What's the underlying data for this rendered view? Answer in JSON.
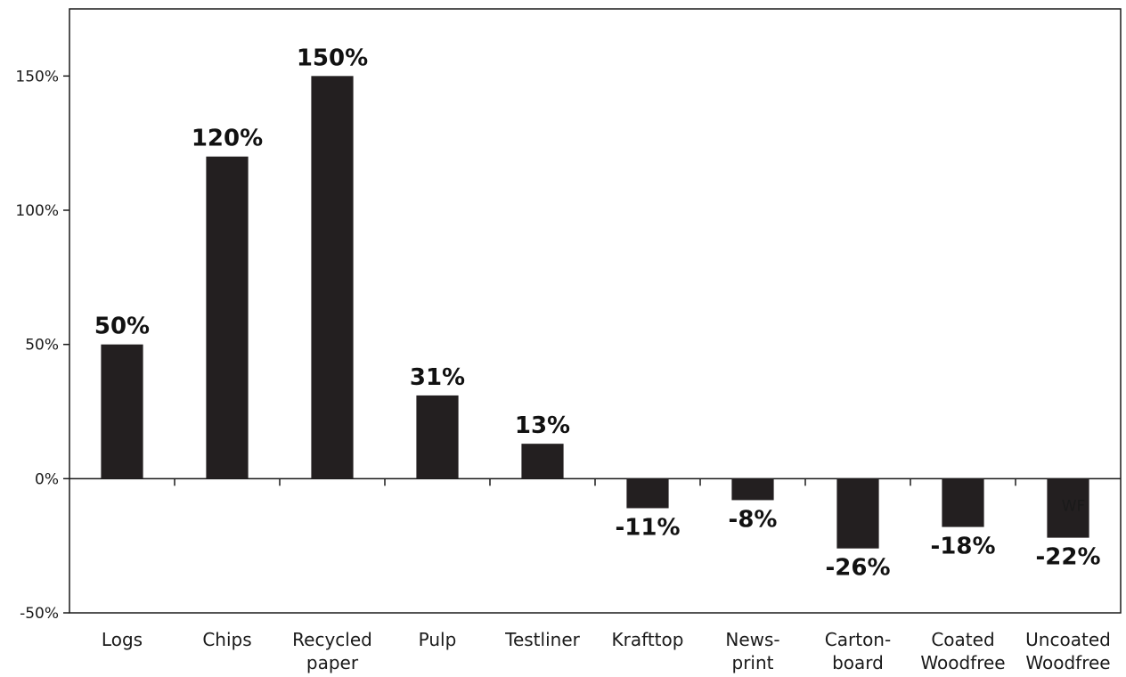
{
  "chart_data": {
    "type": "bar",
    "categories": [
      [
        "Logs"
      ],
      [
        "Chips"
      ],
      [
        "Recycled",
        "paper"
      ],
      [
        "Pulp"
      ],
      [
        "Testliner"
      ],
      [
        "Krafttop"
      ],
      [
        "News-",
        "print"
      ],
      [
        "Carton-",
        "board"
      ],
      [
        "Coated",
        "Woodfree"
      ],
      [
        "Uncoated",
        "Woodfree"
      ]
    ],
    "values": [
      50,
      120,
      150,
      31,
      13,
      -11,
      -8,
      -26,
      -18,
      -22
    ],
    "data_labels": [
      "50%",
      "120%",
      "150%",
      "31%",
      "13%",
      "-11%",
      "-8%",
      "-26%",
      "-18%",
      "-22%"
    ],
    "ylim": [
      -50,
      175
    ],
    "yticks": [
      -50,
      0,
      50,
      100,
      150
    ],
    "ytick_labels": [
      "-50%",
      "0%",
      "50%",
      "100%",
      "150%"
    ],
    "bar_color": "#231f20",
    "annotation": "WF",
    "grid": false,
    "legend": "none"
  }
}
